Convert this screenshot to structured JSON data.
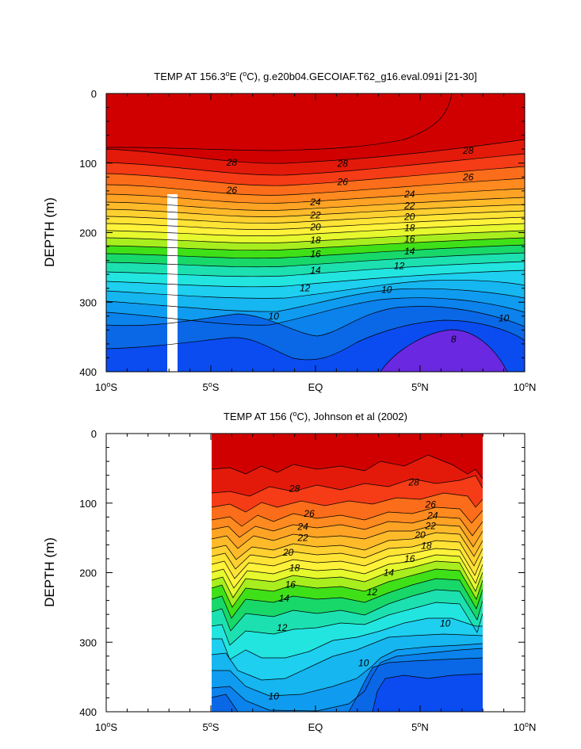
{
  "chart_data": [
    {
      "type": "contour",
      "title_prefix": "TEMP AT 156.3",
      "title_sup": "o",
      "title_suffix": "E (",
      "title_unit_sup": "o",
      "title_tail": "C), g.e20b04.GECOIAF.T62_g16.eval.091i [21-30]",
      "ylabel": "DEPTH (m)",
      "xlim": [
        -10,
        10
      ],
      "ylim": [
        400,
        0
      ],
      "yticks": [
        "0",
        "100",
        "200",
        "300",
        "400"
      ],
      "yticks_values": [
        0,
        100,
        200,
        300,
        400
      ],
      "xticks": [
        {
          "num": "10",
          "sup": "o",
          "hem": "S"
        },
        {
          "num": "5",
          "sup": "o",
          "hem": "S"
        },
        {
          "num": "",
          "sup": "",
          "hem": "EQ"
        },
        {
          "num": "5",
          "sup": "o",
          "hem": "N"
        },
        {
          "num": "10",
          "sup": "o",
          "hem": "N"
        }
      ],
      "xticks_values": [
        -10,
        -5,
        0,
        5,
        10
      ],
      "data_extent_x": [
        -10,
        10
      ],
      "missing_column_x": [
        -2.8,
        -2.3
      ],
      "missing_column_depth": [
        145,
        400
      ],
      "contour_interval": 1,
      "contour_labels": [
        {
          "text": "28",
          "x": -4.0,
          "y": 99
        },
        {
          "text": "28",
          "x": 1.3,
          "y": 101
        },
        {
          "text": "28",
          "x": 7.3,
          "y": 82
        },
        {
          "text": "26",
          "x": -4.0,
          "y": 139
        },
        {
          "text": "26",
          "x": 1.3,
          "y": 127
        },
        {
          "text": "26",
          "x": 7.3,
          "y": 120
        },
        {
          "text": "24",
          "x": 0.0,
          "y": 156
        },
        {
          "text": "24",
          "x": 4.5,
          "y": 145
        },
        {
          "text": "22",
          "x": 0.0,
          "y": 175
        },
        {
          "text": "22",
          "x": 4.5,
          "y": 161
        },
        {
          "text": "20",
          "x": 0.0,
          "y": 192
        },
        {
          "text": "20",
          "x": 4.5,
          "y": 177
        },
        {
          "text": "18",
          "x": 0.0,
          "y": 211
        },
        {
          "text": "18",
          "x": 4.5,
          "y": 193
        },
        {
          "text": "16",
          "x": 0.0,
          "y": 231
        },
        {
          "text": "16",
          "x": 4.5,
          "y": 209
        },
        {
          "text": "14",
          "x": 0.0,
          "y": 254
        },
        {
          "text": "14",
          "x": 4.5,
          "y": 227
        },
        {
          "text": "12",
          "x": -0.5,
          "y": 280
        },
        {
          "text": "12",
          "x": 4.0,
          "y": 248
        },
        {
          "text": "10",
          "x": -2.0,
          "y": 320
        },
        {
          "text": "10",
          "x": 3.4,
          "y": 282
        },
        {
          "text": "10",
          "x": 9.0,
          "y": 323
        },
        {
          "text": "8",
          "x": 6.6,
          "y": 353
        }
      ]
    },
    {
      "type": "contour",
      "title_prefix": "TEMP AT 156 (",
      "title_unit_sup": "o",
      "title_tail": "C), Johnson et al (2002)",
      "ylabel": "DEPTH (m)",
      "xlim": [
        -10,
        10
      ],
      "ylim": [
        400,
        0
      ],
      "yticks": [
        "0",
        "100",
        "200",
        "300",
        "400"
      ],
      "yticks_values": [
        0,
        100,
        200,
        300,
        400
      ],
      "xticks": [
        {
          "num": "10",
          "sup": "o",
          "hem": "S"
        },
        {
          "num": "5",
          "sup": "o",
          "hem": "S"
        },
        {
          "num": "",
          "sup": "",
          "hem": "EQ"
        },
        {
          "num": "5",
          "sup": "o",
          "hem": "N"
        },
        {
          "num": "10",
          "sup": "o",
          "hem": "N"
        }
      ],
      "xticks_values": [
        -10,
        -5,
        0,
        5,
        10
      ],
      "data_extent_x": [
        -5,
        8
      ],
      "contour_interval": 1,
      "contour_labels": [
        {
          "text": "28",
          "x": -1.0,
          "y": 79
        },
        {
          "text": "28",
          "x": 4.7,
          "y": 70
        },
        {
          "text": "26",
          "x": -0.3,
          "y": 115
        },
        {
          "text": "26",
          "x": 5.5,
          "y": 102
        },
        {
          "text": "24",
          "x": -0.6,
          "y": 134
        },
        {
          "text": "24",
          "x": 5.6,
          "y": 118
        },
        {
          "text": "22",
          "x": -0.6,
          "y": 150
        },
        {
          "text": "22",
          "x": 5.5,
          "y": 133
        },
        {
          "text": "20",
          "x": -1.3,
          "y": 171
        },
        {
          "text": "20",
          "x": 5.0,
          "y": 146
        },
        {
          "text": "18",
          "x": -1.0,
          "y": 193
        },
        {
          "text": "18",
          "x": 5.3,
          "y": 161
        },
        {
          "text": "16",
          "x": -1.2,
          "y": 217
        },
        {
          "text": "16",
          "x": 4.5,
          "y": 180
        },
        {
          "text": "14",
          "x": -1.5,
          "y": 237
        },
        {
          "text": "14",
          "x": 3.5,
          "y": 200
        },
        {
          "text": "12",
          "x": -1.6,
          "y": 279
        },
        {
          "text": "12",
          "x": 2.7,
          "y": 228
        },
        {
          "text": "10",
          "x": 6.2,
          "y": 273
        },
        {
          "text": "10",
          "x": 2.3,
          "y": 330
        },
        {
          "text": "10",
          "x": -2.0,
          "y": 378
        }
      ]
    }
  ]
}
